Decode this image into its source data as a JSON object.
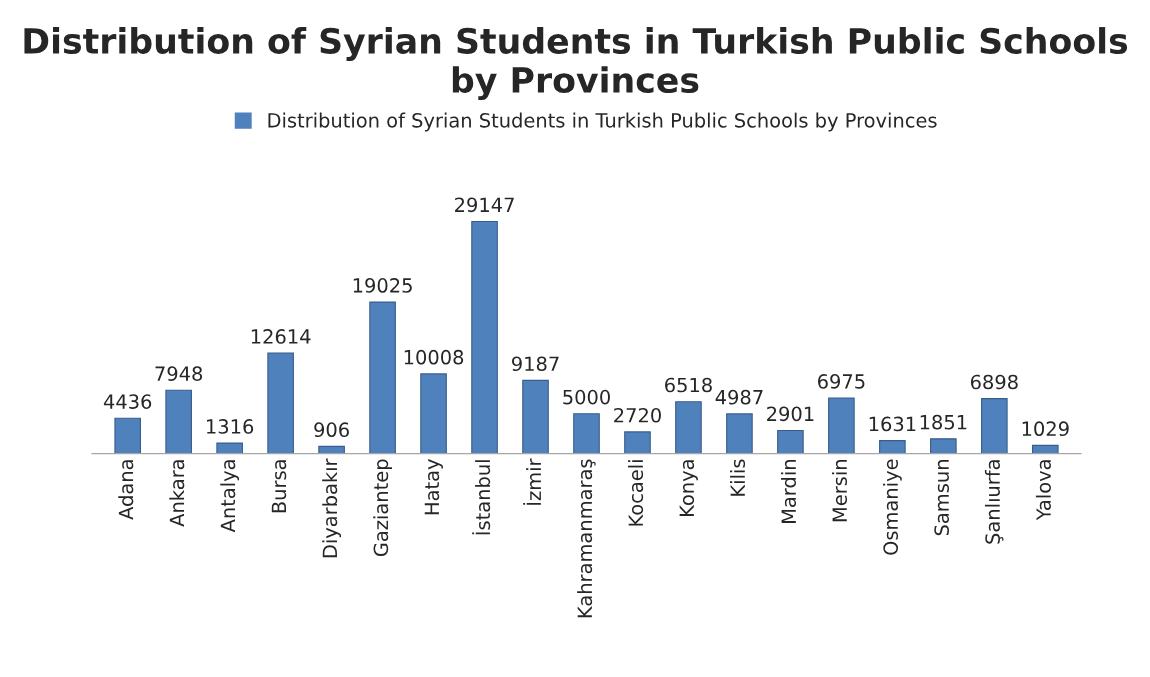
{
  "chart_data": {
    "type": "bar",
    "title": "Distribution of Syrian Students in Turkish Public Schools by Provinces",
    "categories": [
      "Adana",
      "Ankara",
      "Antalya",
      "Bursa",
      "Diyarbakır",
      "Gaziantep",
      "Hatay",
      "İstanbul",
      "İzmir",
      "Kahramanmaraş",
      "Kocaeli",
      "Konya",
      "Kilis",
      "Mardin",
      "Mersin",
      "Osmaniye",
      "Samsun",
      "Şanlıurfa",
      "Yalova"
    ],
    "series": [
      {
        "name": "Distribution of Syrian Students in Turkish Public Schools by Provinces",
        "color": "#4f81bd",
        "values": [
          4436,
          7948,
          1316,
          12614,
          906,
          19025,
          10008,
          29147,
          9187,
          5000,
          2720,
          6518,
          4987,
          2901,
          6975,
          1631,
          1851,
          6898,
          1029
        ]
      }
    ],
    "data_labels": true,
    "legend": "top",
    "grid": false
  }
}
